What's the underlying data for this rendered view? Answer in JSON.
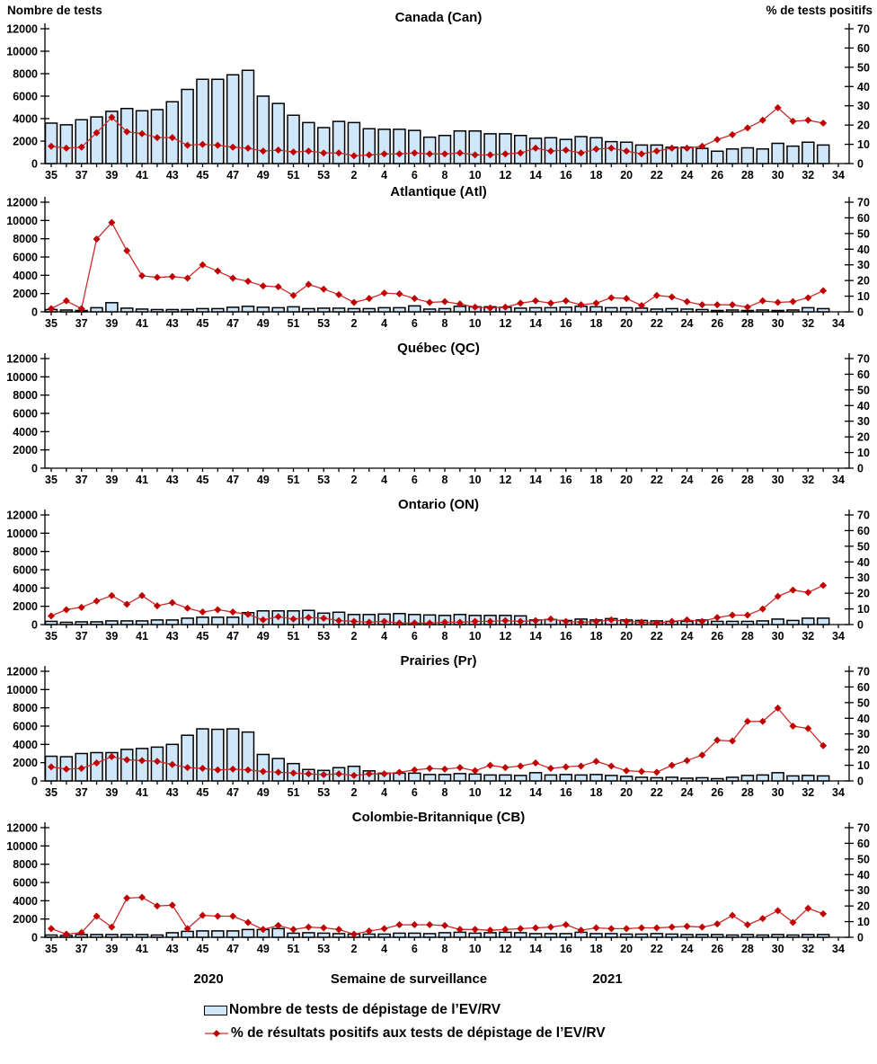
{
  "colors": {
    "bar_fill": "#cfe7f9",
    "bar_border": "#000000",
    "line": "#cc2b2b",
    "marker": "#c00000",
    "axis": "#000000"
  },
  "legend": {
    "tests_label": "Nombre de tests de dépistage de l’EV/RV",
    "pct_label": "% de résultats positifs aux tests de dépistage de l’EV/RV"
  },
  "chart_data": {
    "type": "bar+line multipanel",
    "x": {
      "axis_title": "Semaine de surveillance",
      "year_left": "2020",
      "year_right": "2021",
      "weeks": [
        35,
        36,
        37,
        38,
        39,
        40,
        41,
        42,
        43,
        44,
        45,
        46,
        47,
        48,
        49,
        50,
        51,
        52,
        53,
        1,
        2,
        3,
        4,
        5,
        6,
        7,
        8,
        9,
        10,
        11,
        12,
        13,
        14,
        15,
        16,
        17,
        18,
        19,
        20,
        21,
        22,
        23,
        24,
        25,
        26,
        27,
        28,
        29,
        30,
        31,
        32,
        33,
        34
      ],
      "tick_labels": [
        "35",
        "37",
        "39",
        "41",
        "43",
        "45",
        "47",
        "49",
        "51",
        "53",
        "2",
        "4",
        "6",
        "8",
        "10",
        "12",
        "14",
        "16",
        "18",
        "20",
        "22",
        "24",
        "26",
        "28",
        "30",
        "32",
        "34"
      ]
    },
    "y_left": {
      "label": "Nombre de tests",
      "min": 0,
      "max": 12000,
      "ticks": [
        0,
        2000,
        4000,
        6000,
        8000,
        10000,
        12000
      ]
    },
    "y_right": {
      "label": "% de tests positifs",
      "min": 0,
      "max": 70,
      "ticks": [
        0,
        10,
        20,
        30,
        40,
        50,
        60,
        70
      ]
    },
    "panels": [
      {
        "id": "canada",
        "title": "Canada (Can)",
        "tests": [
          3600,
          3450,
          3900,
          4150,
          4650,
          4900,
          4700,
          4800,
          5500,
          6600,
          7500,
          7500,
          7900,
          8300,
          6000,
          5350,
          4300,
          3650,
          3200,
          3750,
          3650,
          3100,
          3050,
          3050,
          2950,
          2350,
          2500,
          2900,
          2900,
          2650,
          2650,
          2500,
          2250,
          2300,
          2150,
          2400,
          2300,
          1950,
          1900,
          1650,
          1650,
          1450,
          1450,
          1350,
          1100,
          1300,
          1400,
          1300,
          1800,
          1550,
          1900,
          1650,
          null
        ],
        "pct_positive": [
          9,
          8,
          8.5,
          16,
          24,
          16.5,
          15.5,
          13.5,
          13.5,
          9.5,
          10,
          9.5,
          8.5,
          8,
          6.5,
          7,
          6,
          6.5,
          5.5,
          5.5,
          4,
          4.5,
          5,
          5,
          5.5,
          5,
          5,
          5.5,
          4.5,
          4.5,
          5,
          5.5,
          8,
          6.5,
          7,
          5.5,
          7.5,
          8,
          6.5,
          5,
          6.5,
          8,
          8,
          9,
          12.5,
          15,
          18.5,
          22.5,
          29,
          22,
          22.5,
          21,
          null
        ]
      },
      {
        "id": "atlantique",
        "title": "Atlantique (Atl)",
        "tests": [
          250,
          200,
          150,
          450,
          1000,
          400,
          300,
          250,
          250,
          250,
          350,
          350,
          500,
          600,
          500,
          450,
          550,
          350,
          400,
          400,
          350,
          350,
          450,
          450,
          650,
          300,
          350,
          600,
          550,
          550,
          500,
          400,
          450,
          450,
          500,
          600,
          550,
          450,
          450,
          400,
          300,
          350,
          300,
          250,
          150,
          200,
          150,
          200,
          150,
          200,
          450,
          350,
          null
        ],
        "pct_positive": [
          2,
          7,
          2,
          46.5,
          57,
          39,
          23,
          22,
          22.5,
          21.5,
          30,
          26,
          21.5,
          19.5,
          16.5,
          16,
          10.5,
          17.5,
          14.5,
          11,
          6,
          8.5,
          12,
          11.5,
          8.5,
          6,
          6.5,
          5,
          3,
          2.5,
          3,
          5.5,
          7,
          5.5,
          7,
          4.5,
          5.5,
          9,
          8.5,
          4,
          10.5,
          9.5,
          6.5,
          4.5,
          4.5,
          4.5,
          3,
          7,
          6,
          6.5,
          9,
          13.5,
          null
        ]
      },
      {
        "id": "quebec",
        "title": "Québec (QC)",
        "tests": [
          null,
          null,
          null,
          null,
          null,
          null,
          null,
          null,
          null,
          null,
          null,
          null,
          null,
          null,
          null,
          null,
          null,
          null,
          null,
          null,
          null,
          null,
          null,
          null,
          null,
          null,
          null,
          null,
          null,
          null,
          null,
          null,
          null,
          null,
          null,
          null,
          null,
          null,
          null,
          null,
          null,
          null,
          null,
          null,
          null,
          null,
          null,
          null,
          null,
          null,
          null,
          null,
          null
        ],
        "pct_positive": [
          null,
          null,
          null,
          null,
          null,
          null,
          null,
          null,
          null,
          null,
          null,
          null,
          null,
          null,
          null,
          null,
          null,
          null,
          null,
          null,
          null,
          null,
          null,
          null,
          null,
          null,
          null,
          null,
          null,
          null,
          null,
          null,
          null,
          null,
          null,
          null,
          null,
          null,
          null,
          null,
          null,
          null,
          null,
          null,
          null,
          null,
          null,
          null,
          null,
          null,
          null,
          null,
          null
        ]
      },
      {
        "id": "ontario",
        "title": "Ontario (ON)",
        "tests": [
          350,
          250,
          300,
          300,
          400,
          400,
          400,
          500,
          500,
          700,
          800,
          800,
          800,
          1300,
          1500,
          1500,
          1500,
          1550,
          1250,
          1350,
          1100,
          1100,
          1150,
          1200,
          1100,
          1050,
          1000,
          1100,
          1000,
          1000,
          1000,
          950,
          500,
          550,
          450,
          600,
          500,
          650,
          500,
          450,
          400,
          350,
          350,
          500,
          350,
          350,
          350,
          400,
          600,
          450,
          700,
          700,
          null
        ],
        "pct_positive": [
          5.5,
          9.5,
          11,
          15,
          18.5,
          13,
          18.5,
          12,
          14,
          10.5,
          8,
          9.5,
          8,
          6.5,
          3,
          5,
          3.5,
          4.5,
          4,
          2.5,
          2,
          1.5,
          2,
          1,
          1,
          1,
          1.5,
          1.5,
          2,
          2,
          2.5,
          2,
          2.5,
          3.5,
          2,
          1.5,
          2,
          3,
          2,
          1.5,
          1,
          2,
          3,
          2,
          4.5,
          6,
          6,
          10,
          18,
          22,
          20.5,
          25,
          null
        ]
      },
      {
        "id": "prairies",
        "title": "Prairies (Pr)",
        "tests": [
          2700,
          2650,
          3000,
          3100,
          3100,
          3450,
          3550,
          3700,
          4000,
          5000,
          5700,
          5650,
          5700,
          5350,
          2900,
          2450,
          1900,
          1250,
          1150,
          1450,
          1600,
          1100,
          850,
          850,
          850,
          700,
          700,
          800,
          750,
          650,
          650,
          600,
          900,
          650,
          700,
          650,
          700,
          600,
          500,
          400,
          350,
          400,
          300,
          350,
          250,
          400,
          600,
          650,
          900,
          550,
          600,
          550,
          null
        ],
        "pct_positive": [
          9,
          7.5,
          8,
          11.5,
          15.5,
          13.5,
          13,
          12.5,
          10.5,
          8.5,
          8,
          7,
          7.5,
          7,
          6,
          5.5,
          5,
          4.5,
          4,
          4.5,
          3.5,
          4.5,
          4.5,
          5.5,
          7,
          8,
          7.5,
          8.5,
          6.5,
          10,
          8.5,
          9.5,
          11.5,
          8,
          9,
          9.5,
          12.5,
          9.5,
          6.5,
          6,
          5.5,
          10,
          13,
          16.5,
          26,
          25.5,
          38,
          38,
          46.5,
          35,
          33.5,
          22.5,
          null
        ]
      },
      {
        "id": "colombie-britannique",
        "title": "Colombie-Britannique (CB)",
        "tests": [
          250,
          200,
          300,
          300,
          300,
          300,
          300,
          250,
          500,
          650,
          700,
          700,
          700,
          850,
          850,
          950,
          450,
          500,
          450,
          400,
          350,
          350,
          350,
          450,
          450,
          400,
          500,
          550,
          450,
          500,
          550,
          500,
          400,
          400,
          400,
          550,
          400,
          400,
          350,
          350,
          400,
          350,
          300,
          300,
          300,
          250,
          300,
          250,
          300,
          250,
          300,
          300,
          null
        ],
        "pct_positive": [
          5.5,
          2,
          3,
          13.5,
          6.5,
          25,
          25.5,
          20,
          20.5,
          5.5,
          14,
          13.5,
          13.5,
          9.5,
          5,
          7.5,
          5,
          6.5,
          6,
          5,
          2,
          4,
          5.5,
          8,
          8,
          8,
          7.5,
          5,
          5,
          4.5,
          5,
          5.5,
          6,
          6.5,
          8,
          4.5,
          6,
          5.5,
          5.5,
          6,
          6,
          6.5,
          7,
          6.5,
          8.5,
          14,
          8,
          12,
          17,
          9.5,
          18.5,
          15,
          null
        ]
      }
    ]
  }
}
